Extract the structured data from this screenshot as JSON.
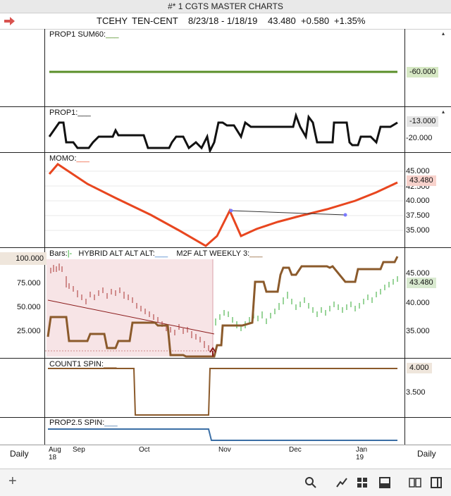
{
  "window": {
    "title": "#* 1 CGTS MASTER CHARTS"
  },
  "info": {
    "symbol": "TCEHY",
    "name": "TEN-CENT",
    "range": "8/23/18 - 1/18/19",
    "last": "43.480",
    "change": "+0.580",
    "pct": "+1.35%"
  },
  "panes": {
    "prop1sum": {
      "label": "PROP1 SUM60:",
      "tag": "-60.000",
      "tag_color": "#d6e8c4"
    },
    "prop1": {
      "label": "PROP1:",
      "tag": "-13.000",
      "ticks": [
        "-20.000"
      ]
    },
    "momo": {
      "label": "MOMO:",
      "tag": "43.480",
      "ticks": [
        "45.000",
        "42.500",
        "40.000",
        "37.500",
        "35.000"
      ]
    },
    "bars": {
      "label_bars": "Bars:",
      "label_hybrid": "HYBRID ALT ALT ALT:",
      "label_m2f": "M2F ALT WEEKLY 3:",
      "left_tag": "100.000",
      "left_ticks": [
        "75.000",
        "50.000",
        "25.000"
      ],
      "tag": "43.480",
      "ticks": [
        "45.000",
        "40.000",
        "35.000"
      ]
    },
    "count1": {
      "label": "COUNT1 SPIN:",
      "tag": "4.000",
      "ticks": [
        "3.500"
      ]
    },
    "prop25": {
      "label": "PROP2.5 SPIN:"
    }
  },
  "bottom": {
    "left_label": "Daily",
    "right_label": "Daily",
    "months": [
      "Aug",
      "Sep",
      "Oct",
      "Nov",
      "Dec",
      "Jan"
    ],
    "years": [
      "18",
      "19"
    ]
  },
  "toolbar": {
    "add": "+"
  }
}
